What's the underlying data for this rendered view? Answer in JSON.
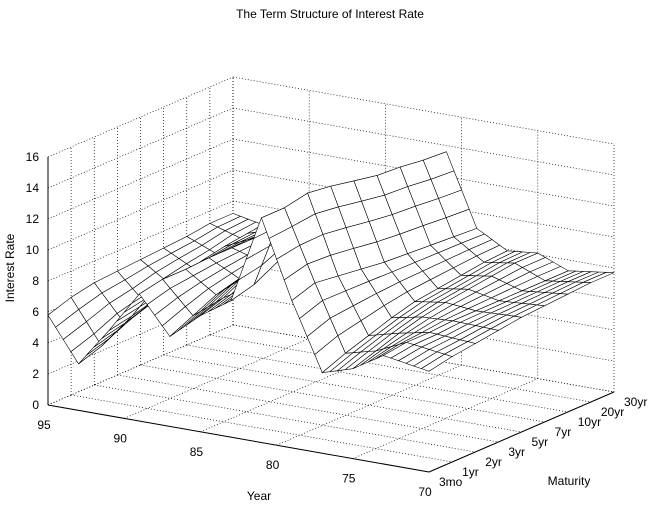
{
  "chart_data": {
    "type": "surface",
    "title": "The Term Structure of Interest Rate",
    "xlabel": "Year",
    "ylabel": "Maturity",
    "zlabel": "Interest Rate",
    "year_ticks": [
      "95",
      "90",
      "85",
      "80",
      "75",
      "70"
    ],
    "year_values": [
      95,
      90,
      85,
      80,
      75,
      70
    ],
    "maturity_ticks": [
      "3mo",
      "1yr",
      "2yr",
      "3yr",
      "5yr",
      "7yr",
      "10yr",
      "20yr",
      "30yr"
    ],
    "z_ticks": [
      "0",
      "2",
      "4",
      "6",
      "8",
      "10",
      "12",
      "14",
      "16"
    ],
    "z_values": [
      0,
      2,
      4,
      6,
      8,
      10,
      12,
      14,
      16
    ],
    "zlim": [
      0,
      16
    ],
    "grid": true,
    "series": [
      {
        "maturity": "3mo",
        "years": [
          70,
          73,
          75,
          77,
          79,
          81,
          83,
          85,
          87,
          89,
          91,
          93,
          95
        ],
        "values": [
          6.5,
          7.0,
          5.8,
          5.2,
          9.5,
          14.5,
          8.8,
          7.5,
          5.8,
          8.2,
          5.5,
          3.0,
          5.8
        ]
      },
      {
        "maturity": "1yr",
        "years": [
          70,
          73,
          75,
          77,
          79,
          81,
          83,
          85,
          87,
          89,
          91,
          93,
          95
        ],
        "values": [
          6.8,
          7.2,
          6.3,
          5.8,
          10.0,
          14.5,
          9.2,
          8.0,
          6.5,
          8.5,
          5.8,
          3.5,
          6.3
        ]
      },
      {
        "maturity": "2yr",
        "years": [
          70,
          73,
          75,
          77,
          79,
          81,
          83,
          85,
          87,
          89,
          91,
          93,
          95
        ],
        "values": [
          7.0,
          7.2,
          6.8,
          6.3,
          9.8,
          14.8,
          10.0,
          8.8,
          7.2,
          8.5,
          6.2,
          4.3,
          6.6
        ]
      },
      {
        "maturity": "3yr",
        "years": [
          70,
          73,
          75,
          77,
          79,
          81,
          83,
          85,
          87,
          89,
          91,
          93,
          95
        ],
        "values": [
          7.2,
          7.3,
          7.2,
          6.8,
          9.6,
          14.6,
          10.4,
          9.2,
          7.6,
          8.6,
          6.8,
          4.8,
          6.7
        ]
      },
      {
        "maturity": "5yr",
        "years": [
          70,
          73,
          75,
          77,
          79,
          81,
          83,
          85,
          87,
          89,
          91,
          93,
          95
        ],
        "values": [
          7.4,
          7.3,
          7.5,
          7.2,
          9.4,
          14.3,
          10.8,
          9.6,
          8.0,
          8.6,
          7.4,
          5.5,
          6.8
        ]
      },
      {
        "maturity": "7yr",
        "years": [
          70,
          73,
          75,
          77,
          79,
          81,
          83,
          85,
          87,
          89,
          91,
          93,
          95
        ],
        "values": [
          7.5,
          7.3,
          7.7,
          7.4,
          9.3,
          14.0,
          11.0,
          9.8,
          8.3,
          8.6,
          7.7,
          5.9,
          6.9
        ]
      },
      {
        "maturity": "10yr",
        "years": [
          70,
          73,
          75,
          77,
          79,
          81,
          83,
          85,
          87,
          89,
          91,
          93,
          95
        ],
        "values": [
          7.6,
          7.3,
          7.9,
          7.6,
          9.2,
          13.9,
          11.1,
          10.0,
          8.5,
          8.5,
          7.9,
          6.2,
          7.0
        ]
      },
      {
        "maturity": "20yr",
        "years": [
          70,
          73,
          75,
          77,
          79,
          81,
          83,
          85,
          87,
          89,
          91,
          93,
          95
        ],
        "values": [
          7.7,
          7.3,
          8.1,
          7.8,
          9.1,
          13.7,
          11.2,
          10.2,
          8.7,
          8.5,
          8.1,
          6.6,
          7.2
        ]
      },
      {
        "maturity": "30yr",
        "years": [
          70,
          73,
          75,
          77,
          79,
          81,
          83,
          85,
          87,
          89,
          91,
          93,
          95
        ],
        "values": [
          7.7,
          7.3,
          8.1,
          7.9,
          9.0,
          13.6,
          11.2,
          10.2,
          8.8,
          8.4,
          8.1,
          6.8,
          7.2
        ]
      }
    ]
  }
}
